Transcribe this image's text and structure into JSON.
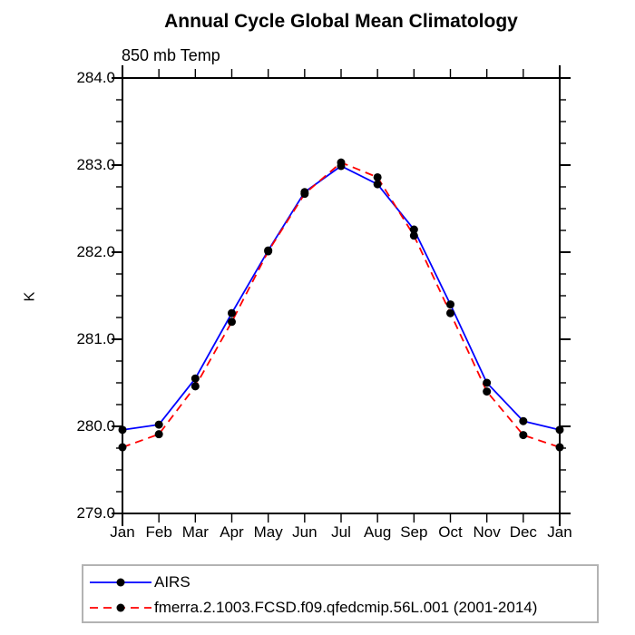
{
  "title": "Annual Cycle Global Mean Climatology",
  "chart_data": {
    "type": "line",
    "title": "Annual Cycle Global Mean Climatology",
    "subtitle": "850 mb Temp",
    "ylabel": "K",
    "ylim": [
      279.0,
      284.0
    ],
    "ytick_step": 1.0,
    "ytick_minor_step": 0.25,
    "ytick_labels": [
      "279.0",
      "280.0",
      "281.0",
      "282.0",
      "283.0",
      "284.0"
    ],
    "categories": [
      "Jan",
      "Feb",
      "Mar",
      "Apr",
      "May",
      "Jun",
      "Jul",
      "Aug",
      "Sep",
      "Oct",
      "Nov",
      "Dec",
      "Jan"
    ],
    "series": [
      {
        "name": "AIRS",
        "color": "#0000ff",
        "style": "solid",
        "marker": "filled-circle",
        "marker_color": "#000000",
        "values": [
          279.96,
          280.02,
          280.55,
          281.3,
          282.02,
          282.69,
          282.99,
          282.78,
          282.26,
          281.4,
          280.5,
          280.06,
          279.96
        ]
      },
      {
        "name": "fmerra.2.1003.FCSD.f09.qfedcmip.56L.001 (2001-2014)",
        "color": "#ff0000",
        "style": "dashed",
        "marker": "filled-circle",
        "marker_color": "#000000",
        "values": [
          279.76,
          279.91,
          280.46,
          281.2,
          282.01,
          282.67,
          283.03,
          282.86,
          282.19,
          281.3,
          280.4,
          279.9,
          279.76
        ]
      }
    ],
    "grid": false,
    "legend_position": "bottom-left"
  },
  "colors": {
    "background": "#ffffff",
    "axis": "#000000",
    "legend_border": "#b3b3b3"
  }
}
